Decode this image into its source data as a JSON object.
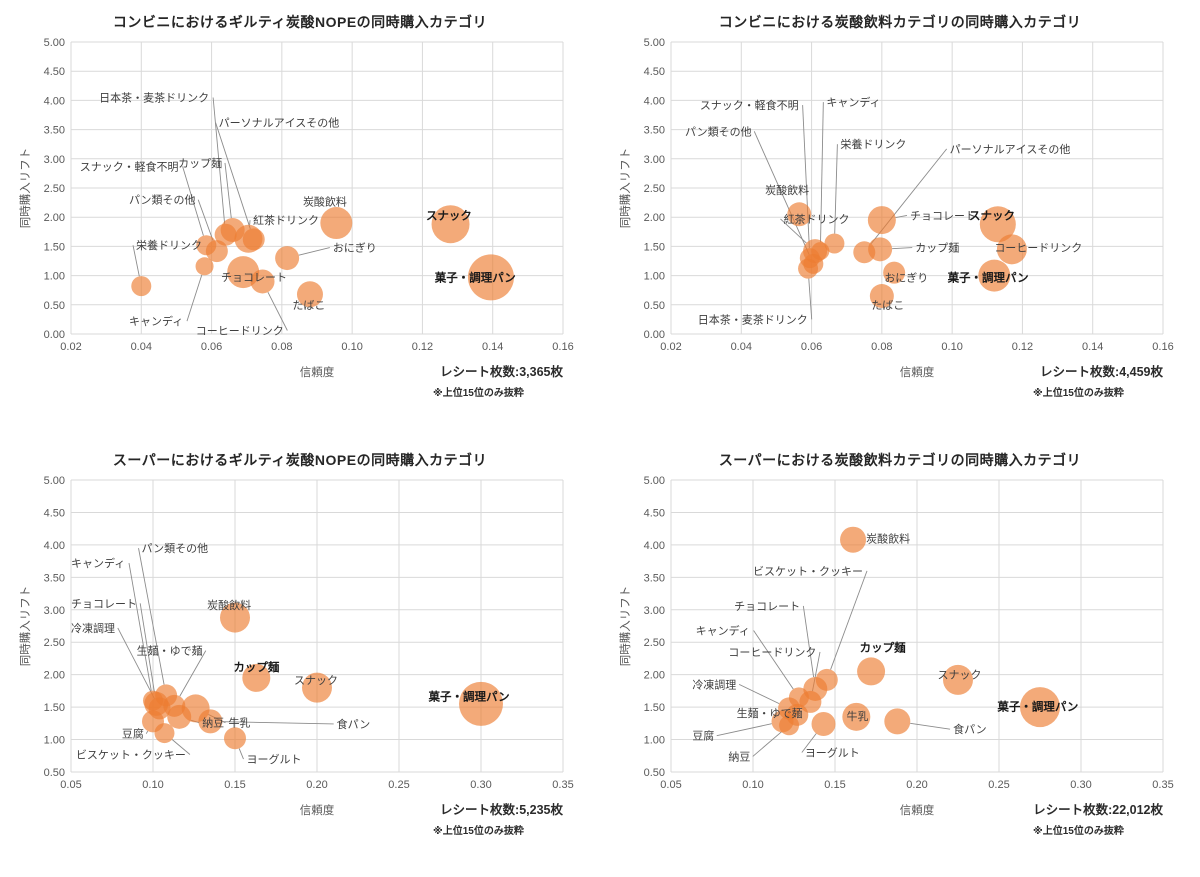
{
  "style": {
    "bubble_color": "#ED7D31",
    "bubble_opacity": 0.65,
    "grid_color": "#D9D9D9",
    "axis_text_color": "#595959",
    "label_color": "#3F3F3F",
    "leader_color": "#8C8C8C",
    "background": "#FFFFFF"
  },
  "chart_data": [
    {
      "type": "bubble",
      "title": "コンビニにおけるギルティ炭酸NOPEの同時購入カテゴリ",
      "xlabel": "信頼度",
      "ylabel": "同時購入リフト",
      "xlim": [
        0.02,
        0.16
      ],
      "ylim": [
        0,
        5
      ],
      "x_ticks": [
        0.02,
        0.04,
        0.06,
        0.08,
        0.1,
        0.12,
        0.14,
        0.16
      ],
      "y_ticks": [
        0,
        0.5,
        1,
        1.5,
        2,
        2.5,
        3,
        3.5,
        4,
        4.5,
        5
      ],
      "receipt": "レシート枚数:3,365枚",
      "note": "※上位15位のみ抜粋",
      "grid": true,
      "points": [
        {
          "label": "日本茶・麦茶ドリンク",
          "x": 0.064,
          "y": 1.7,
          "r": 11,
          "lx": 0.028,
          "ly": 4.05,
          "leader": true
        },
        {
          "label": "パーソナルアイスその他",
          "x": 0.072,
          "y": 1.62,
          "r": 11,
          "lx": 0.062,
          "ly": 3.62,
          "leader": true
        },
        {
          "label": "スナック・軽食不明",
          "x": 0.0585,
          "y": 1.52,
          "r": 10,
          "lx": 0.0225,
          "ly": 2.87,
          "leader": true
        },
        {
          "label": "カップ麺",
          "x": 0.066,
          "y": 1.78,
          "r": 12,
          "lx": 0.0505,
          "ly": 2.93,
          "leader": true
        },
        {
          "label": "パン類その他",
          "x": 0.0615,
          "y": 1.42,
          "r": 11,
          "lx": 0.0365,
          "ly": 2.3,
          "leader": true
        },
        {
          "label": "栄養ドリンク",
          "x": 0.04,
          "y": 0.82,
          "r": 10,
          "lx": 0.0385,
          "ly": 1.52,
          "leader": true
        },
        {
          "label": "炭酸飲料",
          "x": 0.0955,
          "y": 1.9,
          "r": 16,
          "lx": 0.086,
          "ly": 2.27,
          "leader": false
        },
        {
          "label": "紅茶ドリンク",
          "x": 0.0705,
          "y": 1.63,
          "r": 14,
          "lx": 0.0718,
          "ly": 1.95,
          "leader": true
        },
        {
          "label": "スナック",
          "x": 0.128,
          "y": 1.88,
          "r": 19,
          "lx": 0.121,
          "ly": 2.03,
          "leader": false,
          "bold": true
        },
        {
          "label": "おにぎり",
          "x": 0.0815,
          "y": 1.3,
          "r": 12,
          "lx": 0.0945,
          "ly": 1.48,
          "leader": true
        },
        {
          "label": "チョコレート",
          "x": 0.069,
          "y": 1.06,
          "r": 16,
          "lx": 0.0627,
          "ly": 0.98,
          "leader": false
        },
        {
          "label": "菓子・調理パン",
          "x": 0.1395,
          "y": 0.97,
          "r": 23,
          "lx": 0.1235,
          "ly": 0.97,
          "leader": false,
          "bold": true
        },
        {
          "label": "キャンディ",
          "x": 0.058,
          "y": 1.16,
          "r": 9,
          "lx": 0.0365,
          "ly": 0.22,
          "leader": true
        },
        {
          "label": "コーヒードリンク",
          "x": 0.0745,
          "y": 0.9,
          "r": 12,
          "lx": 0.0555,
          "ly": 0.06,
          "leader": true
        },
        {
          "label": "たばこ",
          "x": 0.088,
          "y": 0.68,
          "r": 13,
          "lx": 0.083,
          "ly": 0.5,
          "leader": false
        }
      ]
    },
    {
      "type": "bubble",
      "title": "コンビニにおける炭酸飲料カテゴリの同時購入カテゴリ",
      "xlabel": "信頼度",
      "ylabel": "同時購入リフト",
      "xlim": [
        0.02,
        0.16
      ],
      "ylim": [
        0,
        5
      ],
      "x_ticks": [
        0.02,
        0.04,
        0.06,
        0.08,
        0.1,
        0.12,
        0.14,
        0.16
      ],
      "y_ticks": [
        0,
        0.5,
        1,
        1.5,
        2,
        2.5,
        3,
        3.5,
        4,
        4.5,
        5
      ],
      "receipt": "レシート枚数:4,459枚",
      "note": "※上位15位のみ抜粋",
      "grid": true,
      "points": [
        {
          "label": "スナック・軽食不明",
          "x": 0.0595,
          "y": 1.3,
          "r": 10,
          "lx": 0.0282,
          "ly": 3.92,
          "leader": true
        },
        {
          "label": "キャンディ",
          "x": 0.0625,
          "y": 1.42,
          "r": 9,
          "lx": 0.0642,
          "ly": 3.97,
          "leader": true
        },
        {
          "label": "パン類その他",
          "x": 0.0605,
          "y": 1.2,
          "r": 10,
          "lx": 0.024,
          "ly": 3.47,
          "leader": true
        },
        {
          "label": "栄養ドリンク",
          "x": 0.0665,
          "y": 1.55,
          "r": 10,
          "lx": 0.0682,
          "ly": 3.25,
          "leader": true
        },
        {
          "label": "パーソナルアイスその他",
          "x": 0.075,
          "y": 1.4,
          "r": 11,
          "lx": 0.0993,
          "ly": 3.17,
          "leader": true
        },
        {
          "label": "炭酸飲料",
          "x": 0.0565,
          "y": 2.05,
          "r": 12,
          "lx": 0.0468,
          "ly": 2.47,
          "leader": false
        },
        {
          "label": "チョコレート",
          "x": 0.08,
          "y": 1.95,
          "r": 14,
          "lx": 0.088,
          "ly": 2.03,
          "leader": true
        },
        {
          "label": "紅茶ドリンク",
          "x": 0.061,
          "y": 1.42,
          "r": 12,
          "lx": 0.052,
          "ly": 1.97,
          "leader": true
        },
        {
          "label": "スナック",
          "x": 0.113,
          "y": 1.88,
          "r": 18,
          "lx": 0.1048,
          "ly": 2.03,
          "leader": false,
          "bold": true
        },
        {
          "label": "カップ麺",
          "x": 0.0795,
          "y": 1.45,
          "r": 12,
          "lx": 0.0895,
          "ly": 1.48,
          "leader": true
        },
        {
          "label": "コーヒードリンク",
          "x": 0.117,
          "y": 1.45,
          "r": 15,
          "lx": 0.112,
          "ly": 1.48,
          "leader": false
        },
        {
          "label": "おにぎり",
          "x": 0.0835,
          "y": 1.05,
          "r": 11,
          "lx": 0.0807,
          "ly": 0.97,
          "leader": false
        },
        {
          "label": "菓子・調理パン",
          "x": 0.112,
          "y": 1.0,
          "r": 16,
          "lx": 0.0987,
          "ly": 0.97,
          "leader": false,
          "bold": true
        },
        {
          "label": "たばこ",
          "x": 0.08,
          "y": 0.65,
          "r": 12,
          "lx": 0.077,
          "ly": 0.5,
          "leader": false
        },
        {
          "label": "日本茶・麦茶ドリンク",
          "x": 0.059,
          "y": 1.12,
          "r": 10,
          "lx": 0.0276,
          "ly": 0.25,
          "leader": true
        }
      ]
    },
    {
      "type": "bubble",
      "title": "スーパーにおけるギルティ炭酸NOPEの同時購入カテゴリ",
      "xlabel": "信頼度",
      "ylabel": "同時購入リフト",
      "xlim": [
        0.05,
        0.35
      ],
      "ylim": [
        0.5,
        5
      ],
      "x_ticks": [
        0.05,
        0.1,
        0.15,
        0.2,
        0.25,
        0.3,
        0.35
      ],
      "y_ticks": [
        0.5,
        1,
        1.5,
        2,
        2.5,
        3,
        3.5,
        4,
        4.5,
        5
      ],
      "receipt": "レシート枚数:5,235枚",
      "note": "※上位15位のみ抜粋",
      "grid": true,
      "points": [
        {
          "label": "パン類その他",
          "x": 0.108,
          "y": 1.68,
          "r": 11,
          "lx": 0.093,
          "ly": 3.95,
          "leader": true
        },
        {
          "label": "キャンディ",
          "x": 0.1,
          "y": 1.6,
          "r": 10,
          "lx": 0.05,
          "ly": 3.72,
          "leader": true
        },
        {
          "label": "チョコレート",
          "x": 0.102,
          "y": 1.55,
          "r": 12,
          "lx": 0.05,
          "ly": 3.1,
          "leader": true
        },
        {
          "label": "冷凍調理",
          "x": 0.104,
          "y": 1.48,
          "r": 11,
          "lx": 0.05,
          "ly": 2.72,
          "leader": true
        },
        {
          "label": "炭酸飲料",
          "x": 0.15,
          "y": 2.88,
          "r": 15,
          "lx": 0.133,
          "ly": 3.07,
          "leader": false
        },
        {
          "label": "生麺・ゆで麺",
          "x": 0.113,
          "y": 1.52,
          "r": 11,
          "lx": 0.09,
          "ly": 2.37,
          "leader": true
        },
        {
          "label": "カップ麺",
          "x": 0.163,
          "y": 1.95,
          "r": 14,
          "lx": 0.149,
          "ly": 2.12,
          "leader": false,
          "bold": true
        },
        {
          "label": "スナック",
          "x": 0.2,
          "y": 1.8,
          "r": 15,
          "lx": 0.186,
          "ly": 1.92,
          "leader": false
        },
        {
          "label": "豆腐",
          "x": 0.1,
          "y": 1.28,
          "r": 11,
          "lx": 0.081,
          "ly": 1.09,
          "leader": true
        },
        {
          "label": "納豆",
          "x": 0.116,
          "y": 1.35,
          "r": 12,
          "lx": 0.13,
          "ly": 1.26,
          "leader": true
        },
        {
          "label": "牛乳",
          "x": 0.126,
          "y": 1.48,
          "r": 14,
          "lx": 0.146,
          "ly": 1.26,
          "leader": true
        },
        {
          "label": "食パン",
          "x": 0.135,
          "y": 1.28,
          "r": 12,
          "lx": 0.212,
          "ly": 1.24,
          "leader": true
        },
        {
          "label": "ビスケット・クッキー",
          "x": 0.107,
          "y": 1.1,
          "r": 10,
          "lx": 0.053,
          "ly": 0.77,
          "leader": true
        },
        {
          "label": "ヨーグルト",
          "x": 0.15,
          "y": 1.02,
          "r": 11,
          "lx": 0.157,
          "ly": 0.7,
          "leader": true
        },
        {
          "label": "菓子・調理パン",
          "x": 0.3,
          "y": 1.55,
          "r": 22,
          "lx": 0.268,
          "ly": 1.66,
          "leader": false,
          "bold": true
        }
      ]
    },
    {
      "type": "bubble",
      "title": "スーパーにおける炭酸飲料カテゴリの同時購入カテゴリ",
      "xlabel": "信頼度",
      "ylabel": "同時購入リフト",
      "xlim": [
        0.05,
        0.35
      ],
      "ylim": [
        0.5,
        5
      ],
      "x_ticks": [
        0.05,
        0.1,
        0.15,
        0.2,
        0.25,
        0.3,
        0.35
      ],
      "y_ticks": [
        0.5,
        1,
        1.5,
        2,
        2.5,
        3,
        3.5,
        4,
        4.5,
        5
      ],
      "receipt": "レシート枚数:22,012枚",
      "note": "※上位15位のみ抜粋",
      "grid": true,
      "points": [
        {
          "label": "炭酸飲料",
          "x": 0.161,
          "y": 4.08,
          "r": 13,
          "lx": 0.169,
          "ly": 4.1,
          "leader": false
        },
        {
          "label": "ビスケット・クッキー",
          "x": 0.145,
          "y": 1.92,
          "r": 11,
          "lx": 0.1,
          "ly": 3.6,
          "leader": true
        },
        {
          "label": "チョコレート",
          "x": 0.138,
          "y": 1.78,
          "r": 12,
          "lx": 0.0885,
          "ly": 3.06,
          "leader": true
        },
        {
          "label": "キャンディ",
          "x": 0.128,
          "y": 1.65,
          "r": 10,
          "lx": 0.065,
          "ly": 2.68,
          "leader": true
        },
        {
          "label": "コーヒードリンク",
          "x": 0.135,
          "y": 1.58,
          "r": 11,
          "lx": 0.085,
          "ly": 2.35,
          "leader": true
        },
        {
          "label": "カップ麺",
          "x": 0.172,
          "y": 2.05,
          "r": 14,
          "lx": 0.165,
          "ly": 2.42,
          "leader": false,
          "bold": true
        },
        {
          "label": "スナック",
          "x": 0.225,
          "y": 1.92,
          "r": 15,
          "lx": 0.2125,
          "ly": 2.0,
          "leader": false
        },
        {
          "label": "冷凍調理",
          "x": 0.122,
          "y": 1.48,
          "r": 11,
          "lx": 0.063,
          "ly": 1.85,
          "leader": true
        },
        {
          "label": "生麺・ゆで麺",
          "x": 0.127,
          "y": 1.38,
          "r": 11,
          "lx": 0.09,
          "ly": 1.41,
          "leader": true
        },
        {
          "label": "牛乳",
          "x": 0.163,
          "y": 1.35,
          "r": 14,
          "lx": 0.157,
          "ly": 1.36,
          "leader": false
        },
        {
          "label": "食パン",
          "x": 0.188,
          "y": 1.28,
          "r": 13,
          "lx": 0.222,
          "ly": 1.16,
          "leader": true
        },
        {
          "label": "菓子・調理パン",
          "x": 0.275,
          "y": 1.5,
          "r": 20,
          "lx": 0.249,
          "ly": 1.51,
          "leader": false,
          "bold": true
        },
        {
          "label": "豆腐",
          "x": 0.118,
          "y": 1.28,
          "r": 11,
          "lx": 0.063,
          "ly": 1.06,
          "leader": true
        },
        {
          "label": "納豆",
          "x": 0.122,
          "y": 1.22,
          "r": 10,
          "lx": 0.085,
          "ly": 0.74,
          "leader": true
        },
        {
          "label": "ヨーグルト",
          "x": 0.143,
          "y": 1.24,
          "r": 12,
          "lx": 0.1316,
          "ly": 0.8,
          "leader": true
        }
      ]
    }
  ]
}
